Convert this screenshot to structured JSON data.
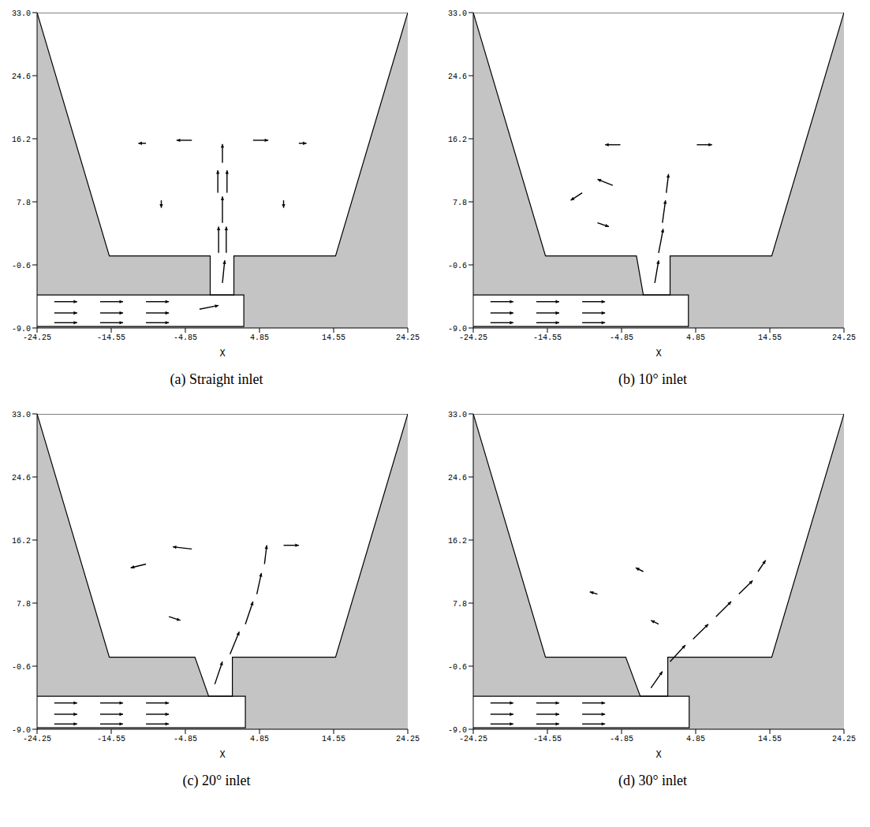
{
  "chart_data": [
    {
      "type": "vector_field",
      "title": "(a) Straight inlet",
      "xlabel": "X",
      "xlim": [
        -24.25,
        24.25
      ],
      "ylim": [
        -9,
        33
      ],
      "xticks": [
        -24.25,
        -14.55,
        -4.85,
        4.85,
        14.55,
        24.25
      ],
      "yticks": [
        {
          "value": 33,
          "label": "33.0"
        },
        24.6,
        16.2,
        7.8,
        -0.6,
        {
          "value": -9,
          "label": "-9.0"
        }
      ],
      "grid": false,
      "color": "#000000",
      "basin": {
        "x": [
          -24.25,
          -14.8,
          -1.6,
          -1.6,
          1.5,
          1.5,
          14.8,
          24.25
        ],
        "bottom": [
          33,
          0.6,
          0.6,
          -4.6,
          -4.6,
          0.6,
          0.6,
          33
        ],
        "top": [
          33,
          33,
          33,
          33,
          33,
          33,
          33,
          33
        ]
      },
      "pipe": {
        "x": [
          -24.25,
          2.8
        ],
        "bottom": [
          -8.8,
          -8.8
        ],
        "top": [
          -4.6,
          -4.6
        ]
      },
      "vectors": {
        "x": [
          -22,
          -16,
          -10,
          -22,
          -16,
          -10,
          -22,
          -16,
          -10,
          -3,
          0,
          -0.5,
          0.5,
          0,
          -0.6,
          0.6,
          0,
          -4,
          4,
          -10,
          10,
          -8,
          8
        ],
        "y": [
          -5.5,
          -5.5,
          -5.5,
          -7,
          -7,
          -7,
          -8.3,
          -8.3,
          -8.3,
          -6.5,
          -3,
          1,
          1,
          5,
          9,
          9,
          13,
          16,
          16,
          15.6,
          15.6,
          8,
          8
        ],
        "u": [
          3,
          3,
          3,
          3,
          3,
          3,
          3,
          3,
          3,
          2.5,
          0.3,
          0,
          0,
          0,
          0,
          0,
          0,
          -2,
          2,
          -1,
          1,
          0,
          0
        ],
        "v": [
          0,
          0,
          0,
          0,
          0,
          0,
          0,
          0,
          0,
          0.5,
          3,
          3.5,
          3.5,
          3.5,
          3,
          3,
          2.5,
          0,
          0,
          0,
          0,
          -1,
          -1
        ]
      }
    },
    {
      "type": "vector_field",
      "title": "(b) 10° inlet",
      "xlabel": "X",
      "xlim": [
        -24.25,
        24.25
      ],
      "ylim": [
        -9,
        33
      ],
      "xticks": [
        -24.25,
        -14.55,
        -4.85,
        4.85,
        14.55,
        24.25
      ],
      "yticks": [
        {
          "value": 33,
          "label": "33.0"
        },
        24.6,
        16.2,
        7.8,
        -0.6,
        {
          "value": -9,
          "label": "-9.0"
        }
      ],
      "grid": false,
      "color": "#000000",
      "basin": {
        "x": [
          -24.25,
          -14.8,
          -2.9,
          -2.0,
          1.5,
          1.5,
          14.8,
          24.25
        ],
        "bottom": [
          33,
          0.6,
          0.6,
          -4.6,
          -4.6,
          0.6,
          0.6,
          33
        ],
        "top": [
          33,
          33,
          33,
          33,
          33,
          33,
          33,
          33
        ]
      },
      "pipe": {
        "x": [
          -24.25,
          3.9
        ],
        "bottom": [
          -8.8,
          -8.8
        ],
        "top": [
          -4.6,
          -4.6
        ]
      },
      "vectors": {
        "x": [
          -22,
          -16,
          -10,
          -22,
          -16,
          -10,
          -22,
          -16,
          -10,
          -0.5,
          0,
          0.5,
          1,
          -6,
          -10,
          -8,
          -5,
          5
        ],
        "y": [
          -5.5,
          -5.5,
          -5.5,
          -7,
          -7,
          -7,
          -8.3,
          -8.3,
          -8.3,
          -3,
          1,
          5,
          9,
          10,
          9,
          5,
          15.4,
          15.4
        ],
        "u": [
          3,
          3,
          3,
          3,
          3,
          3,
          3,
          3,
          3,
          0.5,
          0.6,
          0.4,
          0.3,
          -2,
          -1.5,
          1.5,
          -2,
          2
        ],
        "v": [
          0,
          0,
          0,
          0,
          0,
          0,
          0,
          0,
          0,
          3,
          3.2,
          3,
          2.5,
          0.8,
          -1,
          -0.5,
          0,
          0
        ]
      }
    },
    {
      "type": "vector_field",
      "title": "(c) 20° inlet",
      "xlabel": "X",
      "xlim": [
        -24.25,
        24.25
      ],
      "ylim": [
        -9,
        33
      ],
      "xticks": [
        -24.25,
        -14.55,
        -4.85,
        4.85,
        14.55,
        24.25
      ],
      "yticks": [
        {
          "value": 33,
          "label": "33.0"
        },
        24.6,
        16.2,
        7.8,
        -0.6,
        {
          "value": -9,
          "label": "-9.0"
        }
      ],
      "grid": false,
      "color": "#000000",
      "basin": {
        "x": [
          -24.25,
          -14.8,
          -3.6,
          -1.8,
          1.3,
          1.3,
          14.8,
          24.25
        ],
        "bottom": [
          33,
          0.6,
          0.6,
          -4.6,
          -4.6,
          0.6,
          0.6,
          33
        ],
        "top": [
          33,
          33,
          33,
          33,
          33,
          33,
          33,
          33
        ]
      },
      "pipe": {
        "x": [
          -24.25,
          3.0
        ],
        "bottom": [
          -8.8,
          -8.8
        ],
        "top": [
          -4.6,
          -4.6
        ]
      },
      "vectors": {
        "x": [
          -22,
          -16,
          -10,
          -22,
          -16,
          -10,
          -22,
          -16,
          -10,
          -1,
          1,
          3,
          4.5,
          5.5,
          -4,
          -10,
          8,
          -7
        ],
        "y": [
          -5.5,
          -5.5,
          -5.5,
          -7,
          -7,
          -7,
          -8.3,
          -8.3,
          -8.3,
          -3,
          1,
          5,
          9,
          13,
          15,
          13,
          15.5,
          6
        ],
        "u": [
          3,
          3,
          3,
          3,
          3,
          3,
          3,
          3,
          3,
          1,
          1.2,
          1,
          0.6,
          0.3,
          -2.5,
          -2,
          2,
          1.5
        ],
        "v": [
          0,
          0,
          0,
          0,
          0,
          0,
          0,
          0,
          0,
          3,
          3,
          3,
          2.8,
          2.5,
          0.3,
          -0.5,
          0,
          -0.5
        ]
      }
    },
    {
      "type": "vector_field",
      "title": "(d) 30° inlet",
      "xlabel": "X",
      "xlim": [
        -24.25,
        24.25
      ],
      "ylim": [
        -9,
        33
      ],
      "xticks": [
        -24.25,
        -14.55,
        -4.85,
        4.85,
        14.55,
        24.25
      ],
      "yticks": [
        {
          "value": 33,
          "label": "33.0"
        },
        24.6,
        16.2,
        7.8,
        -0.6,
        {
          "value": -9,
          "label": "-9.0"
        }
      ],
      "grid": false,
      "color": "#000000",
      "basin": {
        "x": [
          -24.25,
          -14.8,
          -4.3,
          -2.4,
          1.2,
          1.2,
          14.8,
          24.25
        ],
        "bottom": [
          33,
          0.6,
          0.6,
          -4.6,
          -4.6,
          0.6,
          0.6,
          33
        ],
        "top": [
          33,
          33,
          33,
          33,
          33,
          33,
          33,
          33
        ]
      },
      "pipe": {
        "x": [
          -24.25,
          4.0
        ],
        "bottom": [
          -8.8,
          -8.8
        ],
        "top": [
          -4.6,
          -4.6
        ]
      },
      "vectors": {
        "x": [
          -22,
          -16,
          -10,
          -22,
          -16,
          -10,
          -22,
          -16,
          -10,
          -1,
          1.5,
          4.5,
          7.5,
          10.5,
          13,
          -8,
          -2,
          0
        ],
        "y": [
          -5.5,
          -5.5,
          -5.5,
          -7,
          -7,
          -7,
          -8.3,
          -8.3,
          -8.3,
          -3.5,
          0,
          3,
          6,
          9,
          12,
          9,
          12,
          5
        ],
        "u": [
          3,
          3,
          3,
          3,
          3,
          3,
          3,
          3,
          3,
          1.5,
          2,
          2,
          2,
          1.8,
          1,
          -1,
          -1,
          -1
        ],
        "v": [
          0,
          0,
          0,
          0,
          0,
          0,
          0,
          0,
          0,
          2.2,
          2.2,
          2,
          2,
          1.8,
          1.5,
          0.3,
          0.5,
          0.5
        ]
      }
    }
  ]
}
